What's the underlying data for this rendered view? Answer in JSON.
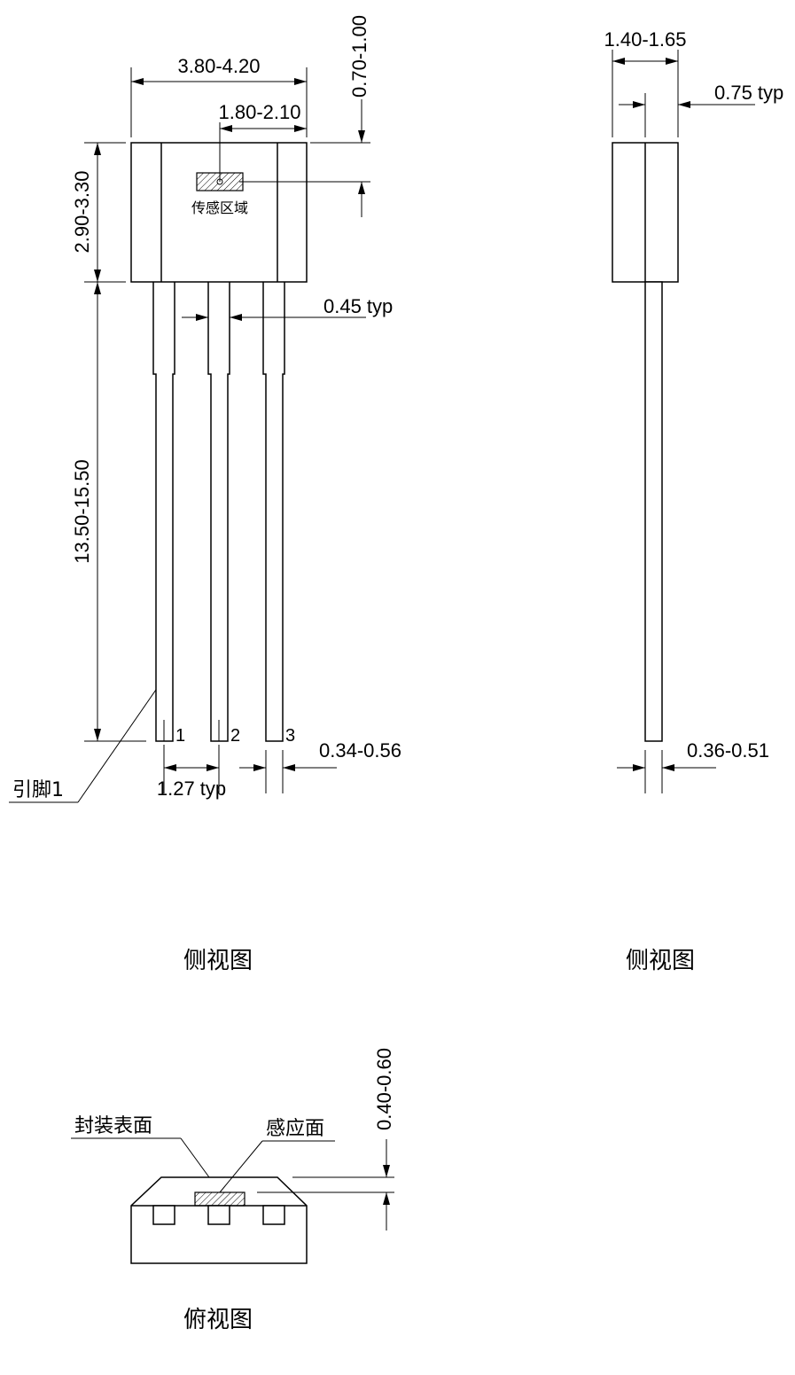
{
  "front_view": {
    "dims": {
      "body_width": "3.80-4.20",
      "sensor_offset": "1.80-2.10",
      "sensor_depth": "0.70-1.00",
      "body_height": "2.90-3.30",
      "lead_length": "13.50-15.50",
      "lead_upper_width": "0.45 typ",
      "lead_pitch": "1.27 typ",
      "lead_lower_width": "0.34-0.56"
    },
    "sensor_label": "传感区域",
    "pin1_label": "引脚1",
    "pins": [
      "1",
      "2",
      "3"
    ],
    "caption": "侧视图"
  },
  "side_view": {
    "dims": {
      "body_thickness": "1.40-1.65",
      "sensor_plane": "0.75 typ",
      "lead_thickness": "0.36-0.51"
    },
    "caption": "侧视图"
  },
  "top_view": {
    "dims": {
      "surface_depth": "0.40-0.60"
    },
    "package_surface_label": "封装表面",
    "sensing_face_label": "感应面",
    "caption": "俯视图"
  }
}
